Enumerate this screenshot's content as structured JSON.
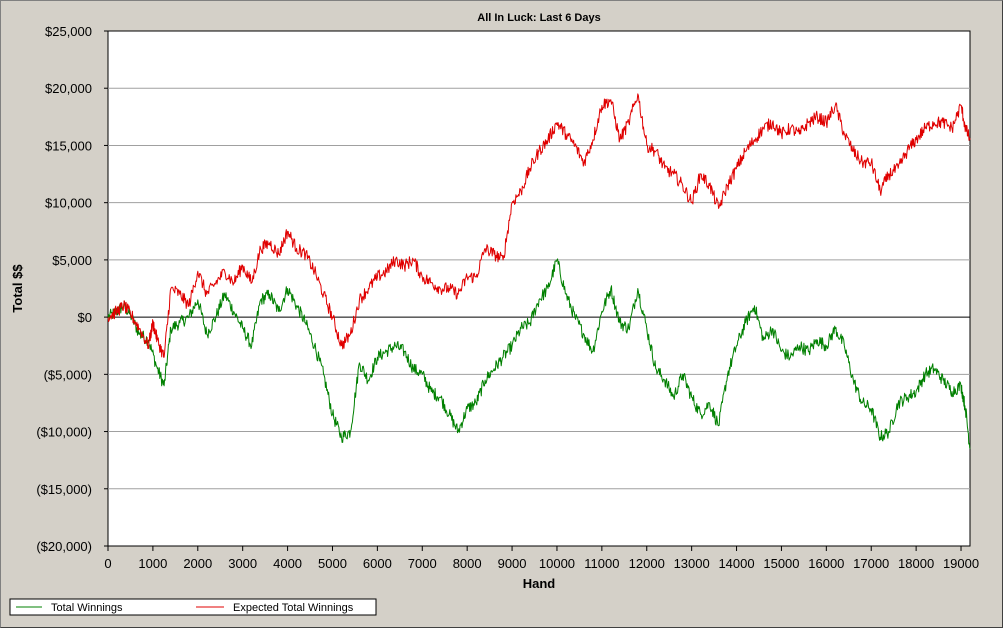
{
  "chart_data": {
    "type": "line",
    "title": "All In Luck:  Last 6 Days",
    "xlabel": "Hand",
    "ylabel": "Total $$",
    "xlim": [
      0,
      19200
    ],
    "ylim": [
      -20000,
      25000
    ],
    "x_ticks": [
      0,
      1000,
      2000,
      3000,
      4000,
      5000,
      6000,
      7000,
      8000,
      9000,
      10000,
      11000,
      12000,
      13000,
      14000,
      15000,
      16000,
      17000,
      18000,
      19000
    ],
    "x_tick_labels": [
      "0",
      "1000",
      "2000",
      "3000",
      "4000",
      "5000",
      "6000",
      "7000",
      "8000",
      "9000",
      "10000",
      "11000",
      "12000",
      "13000",
      "14000",
      "15000",
      "16000",
      "17000",
      "18000",
      "19000"
    ],
    "y_ticks": [
      25000,
      20000,
      15000,
      10000,
      5000,
      0,
      -5000,
      -10000,
      -15000,
      -20000
    ],
    "y_tick_labels": [
      "$25,000",
      "$20,000",
      "$15,000",
      "$10,000",
      "$5,000",
      "$0",
      "($5,000)",
      "($10,000)",
      "($15,000)",
      "($20,000)"
    ],
    "grid": "horizontal",
    "legend_position": "bottom-left",
    "series": [
      {
        "name": "Total Winnings",
        "color": "#008000",
        "points": [
          [
            0,
            0
          ],
          [
            200,
            500
          ],
          [
            350,
            1000
          ],
          [
            500,
            200
          ],
          [
            700,
            -1500
          ],
          [
            900,
            -2000
          ],
          [
            1100,
            -4500
          ],
          [
            1250,
            -6000
          ],
          [
            1400,
            -1000
          ],
          [
            1600,
            -500
          ],
          [
            1800,
            0
          ],
          [
            2000,
            1500
          ],
          [
            2200,
            -1500
          ],
          [
            2400,
            0
          ],
          [
            2600,
            2000
          ],
          [
            2800,
            500
          ],
          [
            3000,
            -1000
          ],
          [
            3200,
            -2500
          ],
          [
            3400,
            1500
          ],
          [
            3600,
            2000
          ],
          [
            3800,
            500
          ],
          [
            4000,
            2500
          ],
          [
            4200,
            1000
          ],
          [
            4400,
            -500
          ],
          [
            4600,
            -2500
          ],
          [
            4800,
            -5000
          ],
          [
            5000,
            -8500
          ],
          [
            5200,
            -10500
          ],
          [
            5400,
            -10000
          ],
          [
            5600,
            -4000
          ],
          [
            5800,
            -5500
          ],
          [
            6000,
            -3500
          ],
          [
            6200,
            -3000
          ],
          [
            6400,
            -2500
          ],
          [
            6600,
            -3000
          ],
          [
            6800,
            -4500
          ],
          [
            7000,
            -5000
          ],
          [
            7200,
            -6500
          ],
          [
            7400,
            -7000
          ],
          [
            7600,
            -8500
          ],
          [
            7800,
            -10000
          ],
          [
            8000,
            -8000
          ],
          [
            8200,
            -7500
          ],
          [
            8400,
            -5500
          ],
          [
            8600,
            -4500
          ],
          [
            8800,
            -3500
          ],
          [
            9000,
            -2500
          ],
          [
            9200,
            -1000
          ],
          [
            9400,
            -500
          ],
          [
            9600,
            1500
          ],
          [
            9800,
            2500
          ],
          [
            10000,
            5000
          ],
          [
            10200,
            2000
          ],
          [
            10400,
            0
          ],
          [
            10600,
            -1500
          ],
          [
            10800,
            -3000
          ],
          [
            11000,
            500
          ],
          [
            11200,
            2500
          ],
          [
            11400,
            -500
          ],
          [
            11600,
            -1000
          ],
          [
            11800,
            2500
          ],
          [
            12000,
            -1000
          ],
          [
            12200,
            -4500
          ],
          [
            12400,
            -5500
          ],
          [
            12600,
            -7000
          ],
          [
            12800,
            -5000
          ],
          [
            13000,
            -7000
          ],
          [
            13200,
            -8500
          ],
          [
            13400,
            -7500
          ],
          [
            13600,
            -9500
          ],
          [
            13800,
            -5000
          ],
          [
            14000,
            -2500
          ],
          [
            14200,
            -500
          ],
          [
            14400,
            1000
          ],
          [
            14600,
            -2000
          ],
          [
            14800,
            -1000
          ],
          [
            15000,
            -3000
          ],
          [
            15200,
            -3500
          ],
          [
            15400,
            -2500
          ],
          [
            15600,
            -3000
          ],
          [
            15800,
            -2000
          ],
          [
            16000,
            -2500
          ],
          [
            16200,
            -1000
          ],
          [
            16400,
            -2500
          ],
          [
            16600,
            -5500
          ],
          [
            16800,
            -7500
          ],
          [
            17000,
            -8000
          ],
          [
            17200,
            -10500
          ],
          [
            17400,
            -10000
          ],
          [
            17600,
            -7500
          ],
          [
            17800,
            -7000
          ],
          [
            18000,
            -6500
          ],
          [
            18200,
            -5000
          ],
          [
            18400,
            -4500
          ],
          [
            18600,
            -5500
          ],
          [
            18800,
            -6500
          ],
          [
            19000,
            -6000
          ],
          [
            19100,
            -8000
          ],
          [
            19200,
            -11500
          ]
        ]
      },
      {
        "name": "Expected Total Winnings",
        "color": "#e00000",
        "points": [
          [
            0,
            0
          ],
          [
            200,
            500
          ],
          [
            350,
            1000
          ],
          [
            500,
            300
          ],
          [
            700,
            -1000
          ],
          [
            900,
            -2500
          ],
          [
            1000,
            -500
          ],
          [
            1100,
            -2000
          ],
          [
            1250,
            -3500
          ],
          [
            1400,
            2500
          ],
          [
            1600,
            2000
          ],
          [
            1800,
            1000
          ],
          [
            2000,
            4000
          ],
          [
            2200,
            2000
          ],
          [
            2400,
            3000
          ],
          [
            2600,
            4000
          ],
          [
            2800,
            3000
          ],
          [
            3000,
            4500
          ],
          [
            3200,
            3000
          ],
          [
            3400,
            6000
          ],
          [
            3600,
            6500
          ],
          [
            3800,
            5500
          ],
          [
            4000,
            7500
          ],
          [
            4200,
            6000
          ],
          [
            4400,
            5500
          ],
          [
            4600,
            4000
          ],
          [
            4800,
            2000
          ],
          [
            5000,
            0
          ],
          [
            5200,
            -2500
          ],
          [
            5400,
            -1500
          ],
          [
            5600,
            1500
          ],
          [
            5800,
            2500
          ],
          [
            6000,
            3500
          ],
          [
            6200,
            4000
          ],
          [
            6400,
            5000
          ],
          [
            6600,
            4500
          ],
          [
            6800,
            5000
          ],
          [
            7000,
            3500
          ],
          [
            7200,
            3000
          ],
          [
            7400,
            2500
          ],
          [
            7600,
            2500
          ],
          [
            7800,
            2000
          ],
          [
            8000,
            3500
          ],
          [
            8200,
            3500
          ],
          [
            8400,
            6000
          ],
          [
            8600,
            5500
          ],
          [
            8800,
            5000
          ],
          [
            9000,
            10000
          ],
          [
            9200,
            11000
          ],
          [
            9400,
            13000
          ],
          [
            9600,
            14500
          ],
          [
            9800,
            15500
          ],
          [
            10000,
            17000
          ],
          [
            10200,
            16000
          ],
          [
            10400,
            15000
          ],
          [
            10600,
            13500
          ],
          [
            10800,
            15500
          ],
          [
            11000,
            18500
          ],
          [
            11200,
            19000
          ],
          [
            11400,
            15500
          ],
          [
            11600,
            17000
          ],
          [
            11800,
            19500
          ],
          [
            12000,
            15000
          ],
          [
            12200,
            14500
          ],
          [
            12400,
            13000
          ],
          [
            12600,
            12500
          ],
          [
            12800,
            11500
          ],
          [
            13000,
            10000
          ],
          [
            13200,
            12500
          ],
          [
            13400,
            11500
          ],
          [
            13600,
            9500
          ],
          [
            13800,
            11500
          ],
          [
            14000,
            13000
          ],
          [
            14200,
            14500
          ],
          [
            14400,
            15500
          ],
          [
            14600,
            16500
          ],
          [
            14800,
            17000
          ],
          [
            15000,
            16000
          ],
          [
            15200,
            16500
          ],
          [
            15400,
            16000
          ],
          [
            15600,
            17000
          ],
          [
            15800,
            17500
          ],
          [
            16000,
            17000
          ],
          [
            16200,
            18500
          ],
          [
            16400,
            16000
          ],
          [
            16600,
            14500
          ],
          [
            16800,
            13500
          ],
          [
            17000,
            13500
          ],
          [
            17200,
            11000
          ],
          [
            17400,
            12500
          ],
          [
            17600,
            13000
          ],
          [
            17800,
            14500
          ],
          [
            18000,
            15500
          ],
          [
            18200,
            16500
          ],
          [
            18400,
            17000
          ],
          [
            18600,
            17000
          ],
          [
            18800,
            16500
          ],
          [
            19000,
            18500
          ],
          [
            19100,
            16500
          ],
          [
            19200,
            15500
          ]
        ]
      }
    ]
  }
}
